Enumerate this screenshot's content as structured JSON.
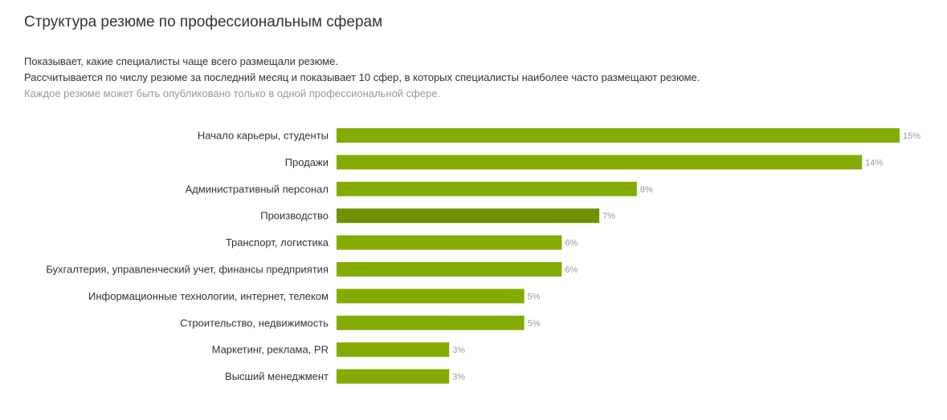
{
  "header": {
    "title": "Структура резюме по профессиональным сферам",
    "description_line1": "Показывает, какие специалисты чаще всего размещали резюме.",
    "description_line2": "Рассчитывается по числу резюме за последний месяц и показывает 10 сфер, в которых специалисты наиболее часто размещают резюме.",
    "note": "Каждое резюме может быть опубликовано только в одной профессиональной сфере."
  },
  "colors": {
    "bar": "#84ac00",
    "bar_highlight": "#6e9200",
    "value_text": "#999999"
  },
  "chart_data": {
    "type": "bar",
    "orientation": "horizontal",
    "categories": [
      "Начало карьеры, студенты",
      "Продажи",
      "Административный персонал",
      "Производство",
      "Транспорт, логистика",
      "Бухгалтерия, управленческий учет, финансы предприятия",
      "Информационные технологии, интернет, телеком",
      "Строительство, недвижимость",
      "Маркетинг, реклама, PR",
      "Высший менеджмент"
    ],
    "values": [
      15,
      14,
      8,
      7,
      6,
      6,
      5,
      5,
      3,
      3
    ],
    "value_labels": [
      "15%",
      "14%",
      "8%",
      "7%",
      "6%",
      "6%",
      "5%",
      "5%",
      "3%",
      "3%"
    ],
    "unit": "%",
    "highlighted_index": 3,
    "xlim": [
      0,
      15
    ],
    "grid": false,
    "legend": "none"
  }
}
